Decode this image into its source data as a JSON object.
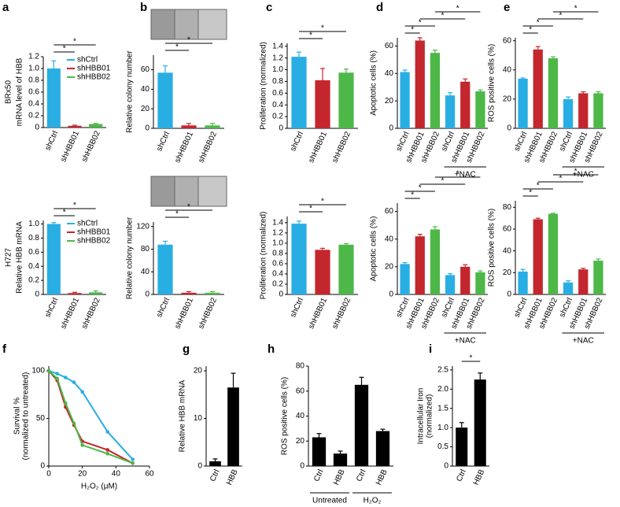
{
  "chart_data": [
    {
      "type": "bar",
      "panel": "a",
      "row_label": "BRx50",
      "ylabel": "mRNA level of HBB",
      "categories": [
        "shCtrl",
        "shHBB01",
        "shHBB02"
      ],
      "values": [
        1.0,
        0.03,
        0.06
      ],
      "errors": [
        0.13,
        0.01,
        0.01
      ],
      "colors": [
        "#29aee4",
        "#c4262e",
        "#4db848"
      ],
      "ylim": [
        0,
        1.2
      ],
      "yticks": [
        0,
        0.2,
        0.4,
        0.6,
        0.8,
        {
          "value": 1,
          "label": "1.0"
        },
        1.2
      ],
      "legend": {
        "position": "top-right",
        "entries": [
          {
            "name": "shCtrl",
            "color": "#29aee4"
          },
          {
            "name": "shHBB01",
            "color": "#c4262e"
          },
          {
            "name": "shHBB02",
            "color": "#4db848"
          }
        ]
      },
      "significance": [
        {
          "label": "*",
          "between": [
            0,
            1
          ]
        },
        {
          "label": "*",
          "between": [
            0,
            2
          ]
        }
      ]
    },
    {
      "type": "bar",
      "panel": "b",
      "ylabel": "Relative colony number",
      "images": true,
      "categories": [
        "shCtrl",
        "shHBB01",
        "shHBB02"
      ],
      "values": [
        57,
        3,
        3
      ],
      "errors": [
        7,
        2,
        2
      ],
      "colors": [
        "#29aee4",
        "#c4262e",
        "#4db848"
      ],
      "ylim": [
        0,
        75
      ],
      "yticks": [
        0,
        20,
        40,
        60
      ],
      "significance": [
        {
          "label": "*",
          "between": [
            0,
            1
          ]
        },
        {
          "label": "*",
          "between": [
            0,
            2
          ]
        }
      ]
    },
    {
      "type": "bar",
      "panel": "c",
      "ylabel": "Proliferation (normalized)",
      "categories": [
        "shCtrl",
        "shHBB01",
        "shHBB02"
      ],
      "values": [
        1.22,
        0.82,
        0.95
      ],
      "errors": [
        0.08,
        0.2,
        0.06
      ],
      "colors": [
        "#29aee4",
        "#c4262e",
        "#4db848"
      ],
      "ylim": [
        0,
        1.45
      ],
      "yticks": [
        0,
        0.2,
        0.4,
        0.6,
        0.8,
        {
          "value": 1,
          "label": "1.0"
        },
        1.2,
        1.4
      ],
      "significance": [
        {
          "label": "*",
          "between": [
            0,
            1
          ]
        },
        {
          "label": "*",
          "between": [
            0,
            2
          ]
        }
      ]
    },
    {
      "type": "bar",
      "panel": "d",
      "ylabel": "Apoptotic cells (%)",
      "categories": [
        "shCtrl",
        "shHBB01",
        "shHBB02",
        "shCtrl",
        "shHBB01",
        "shHBB02"
      ],
      "values": [
        41,
        64,
        55,
        24,
        34,
        27
      ],
      "errors": [
        1.5,
        2,
        2,
        2,
        2,
        1
      ],
      "colors": [
        "#29aee4",
        "#c4262e",
        "#4db848",
        "#29aee4",
        "#c4262e",
        "#4db848"
      ],
      "ylim": [
        0,
        66
      ],
      "yticks": [
        0,
        20,
        40,
        60
      ],
      "groups": [
        {
          "label": "+NAC",
          "bars": [
            3,
            4,
            5
          ]
        }
      ],
      "significance": [
        {
          "label": "*",
          "between": [
            0,
            1
          ]
        },
        {
          "label": "*",
          "between": [
            0,
            2
          ]
        },
        {
          "label": "*",
          "between": [
            1,
            4
          ]
        },
        {
          "label": "*",
          "between": [
            2,
            5
          ]
        }
      ]
    },
    {
      "type": "bar",
      "panel": "e",
      "ylabel": "ROS positive cells (%)",
      "categories": [
        "shCtrl",
        "shHBB01",
        "shHBB02",
        "shCtrl",
        "shHBB01",
        "shHBB02"
      ],
      "values": [
        34,
        54,
        48,
        20,
        24,
        24
      ],
      "errors": [
        0.5,
        2,
        1,
        1.5,
        1,
        1
      ],
      "colors": [
        "#29aee4",
        "#c4262e",
        "#4db848",
        "#29aee4",
        "#c4262e",
        "#4db848"
      ],
      "ylim": [
        0,
        62
      ],
      "yticks": [
        0,
        20,
        40,
        60
      ],
      "groups": [
        {
          "label": "+NAC",
          "bars": [
            3,
            4,
            5
          ]
        }
      ],
      "significance": [
        {
          "label": "*",
          "between": [
            0,
            1
          ]
        },
        {
          "label": "*",
          "between": [
            0,
            2
          ]
        },
        {
          "label": "*",
          "between": [
            1,
            4
          ]
        },
        {
          "label": "*",
          "between": [
            2,
            5
          ]
        }
      ]
    },
    {
      "type": "bar",
      "row_label": "H727",
      "ylabel": "Relative HBB mRNA",
      "categories": [
        "shCtrl",
        "shHBB01",
        "shHBB02"
      ],
      "values": [
        1.0,
        0.02,
        0.03
      ],
      "errors": [
        0.02,
        0.01,
        0.02
      ],
      "colors": [
        "#29aee4",
        "#c4262e",
        "#4db848"
      ],
      "ylim": [
        0,
        1.05
      ],
      "yticks": [
        0,
        0.2,
        0.4,
        0.6,
        0.8,
        {
          "value": 1,
          "label": "1.0"
        }
      ],
      "legend": {
        "position": "top-right",
        "entries": [
          {
            "name": "shCtrl",
            "color": "#29aee4"
          },
          {
            "name": "shHBB01",
            "color": "#c4262e"
          },
          {
            "name": "shHBB02",
            "color": "#4db848"
          }
        ]
      },
      "significance": [
        {
          "label": "*",
          "between": [
            0,
            1
          ]
        },
        {
          "label": "*",
          "between": [
            0,
            2
          ]
        }
      ]
    },
    {
      "type": "bar",
      "ylabel": "Relative colony number",
      "images": true,
      "categories": [
        "shCtrl",
        "shHBB01",
        "shHBB02"
      ],
      "values": [
        88,
        3,
        3
      ],
      "errors": [
        6,
        2,
        2
      ],
      "colors": [
        "#29aee4",
        "#c4262e",
        "#4db848"
      ],
      "ylim": [
        0,
        128
      ],
      "yticks": [
        0,
        40,
        80,
        120
      ],
      "significance": [
        {
          "label": "*",
          "between": [
            0,
            1
          ]
        },
        {
          "label": "*",
          "between": [
            0,
            2
          ]
        }
      ]
    },
    {
      "type": "bar",
      "ylabel": "Proliferation (normalized)",
      "categories": [
        "shCtrl",
        "shHBB01",
        "shHBB02"
      ],
      "values": [
        1.38,
        0.87,
        0.97
      ],
      "errors": [
        0.05,
        0.03,
        0.02
      ],
      "colors": [
        "#29aee4",
        "#c4262e",
        "#4db848"
      ],
      "ylim": [
        0,
        1.52
      ],
      "yticks": [
        0,
        0.2,
        0.4,
        0.6,
        0.8,
        {
          "value": 1,
          "label": "1.0"
        },
        1.2,
        1.4
      ],
      "significance": [
        {
          "label": "*",
          "between": [
            0,
            1
          ]
        },
        {
          "label": "*",
          "between": [
            0,
            2
          ]
        }
      ]
    },
    {
      "type": "bar",
      "ylabel": "Apoptotic cells (%)",
      "categories": [
        "shCtrl",
        "shHBB01",
        "shHBB02",
        "shCtrl",
        "shHBB01",
        "shHBB02"
      ],
      "values": [
        22,
        42,
        47,
        14,
        20,
        16
      ],
      "errors": [
        1,
        1.5,
        2,
        1,
        1.5,
        1
      ],
      "colors": [
        "#29aee4",
        "#c4262e",
        "#4db848",
        "#29aee4",
        "#c4262e",
        "#4db848"
      ],
      "ylim": [
        0,
        66
      ],
      "yticks": [
        0,
        20,
        40,
        60
      ],
      "groups": [
        {
          "label": "+NAC",
          "bars": [
            3,
            4,
            5
          ]
        }
      ],
      "significance": [
        {
          "label": "*",
          "between": [
            0,
            1
          ]
        },
        {
          "label": "*",
          "between": [
            0,
            2
          ]
        },
        {
          "label": "*",
          "between": [
            1,
            4
          ]
        },
        {
          "label": "*",
          "between": [
            2,
            5
          ]
        }
      ]
    },
    {
      "type": "bar",
      "ylabel": "ROS positive cells (%)",
      "categories": [
        "shCtrl",
        "shHBB01",
        "shHBB02",
        "shCtrl",
        "shHBB01",
        "shHBB02"
      ],
      "values": [
        21,
        69,
        74,
        11,
        23,
        31
      ],
      "errors": [
        2,
        1,
        0.5,
        1.5,
        1,
        1.5
      ],
      "colors": [
        "#29aee4",
        "#c4262e",
        "#4db848",
        "#29aee4",
        "#c4262e",
        "#4db848"
      ],
      "ylim": [
        0,
        86
      ],
      "yticks": [
        0,
        20,
        40,
        60,
        80
      ],
      "groups": [
        {
          "label": "+NAC",
          "bars": [
            3,
            4,
            5
          ]
        }
      ],
      "significance": [
        {
          "label": "*",
          "between": [
            0,
            1
          ]
        },
        {
          "label": "*",
          "between": [
            0,
            2
          ]
        },
        {
          "label": "*",
          "between": [
            1,
            4
          ]
        },
        {
          "label": "*",
          "between": [
            2,
            5
          ]
        }
      ]
    },
    {
      "type": "line",
      "panel": "f",
      "ylabel": [
        "Survival %",
        "(normalized to untreated)"
      ],
      "xlabel": "H₂O₂ (μM)",
      "x": [
        0,
        5,
        10,
        15,
        20,
        35,
        50
      ],
      "xlim": [
        0,
        60
      ],
      "xticks": [
        0,
        20,
        40,
        60
      ],
      "ylim": [
        0,
        105
      ],
      "yticks": [
        0,
        50,
        100
      ],
      "series": [
        {
          "color": "#29aee4",
          "values": [
            100,
            97,
            93,
            88,
            78,
            36,
            7
          ]
        },
        {
          "color": "#c4262e",
          "values": [
            100,
            90,
            62,
            43,
            26,
            17,
            3
          ]
        },
        {
          "color": "#4db848",
          "values": [
            100,
            92,
            66,
            45,
            22,
            13,
            3
          ]
        }
      ]
    },
    {
      "type": "bar",
      "panel": "g",
      "ylabel": "Relative HBB mRNA",
      "categories": [
        "Ctrl",
        "HBB"
      ],
      "values": [
        1,
        16.5
      ],
      "errors": [
        0.5,
        3
      ],
      "color": "#000000",
      "ylim": [
        0,
        21
      ],
      "yticks": [
        0,
        10,
        20
      ]
    },
    {
      "type": "bar",
      "panel": "h",
      "ylabel": "ROS positive cells (%)",
      "categories": [
        "Ctrl",
        "HBB",
        "Ctrl",
        "HBB"
      ],
      "values": [
        23,
        10,
        65,
        28
      ],
      "errors": [
        3,
        2,
        6,
        1.5
      ],
      "color": "#000000",
      "ylim": [
        0,
        80
      ],
      "yticks": [
        0,
        20,
        40,
        60,
        80
      ],
      "groups": [
        {
          "label": "Untreated",
          "bars": [
            0,
            1
          ]
        },
        {
          "label": "H₂O₂",
          "bars": [
            2,
            3
          ]
        }
      ]
    },
    {
      "type": "bar",
      "panel": "i",
      "ylabel": [
        "Intracellular Iron",
        "(normalized)"
      ],
      "categories": [
        "Ctrl",
        "HBB"
      ],
      "values": [
        1.0,
        2.25
      ],
      "errors": [
        0.13,
        0.17
      ],
      "color": "#000000",
      "ylim": [
        0,
        2.6
      ],
      "yticks": [
        0,
        0.5,
        {
          "value": 1,
          "label": "1.0"
        },
        1.5,
        {
          "value": 2,
          "label": "2.0"
        },
        2.5
      ],
      "significance": [
        {
          "label": "*",
          "between": [
            0,
            1
          ]
        }
      ]
    }
  ]
}
